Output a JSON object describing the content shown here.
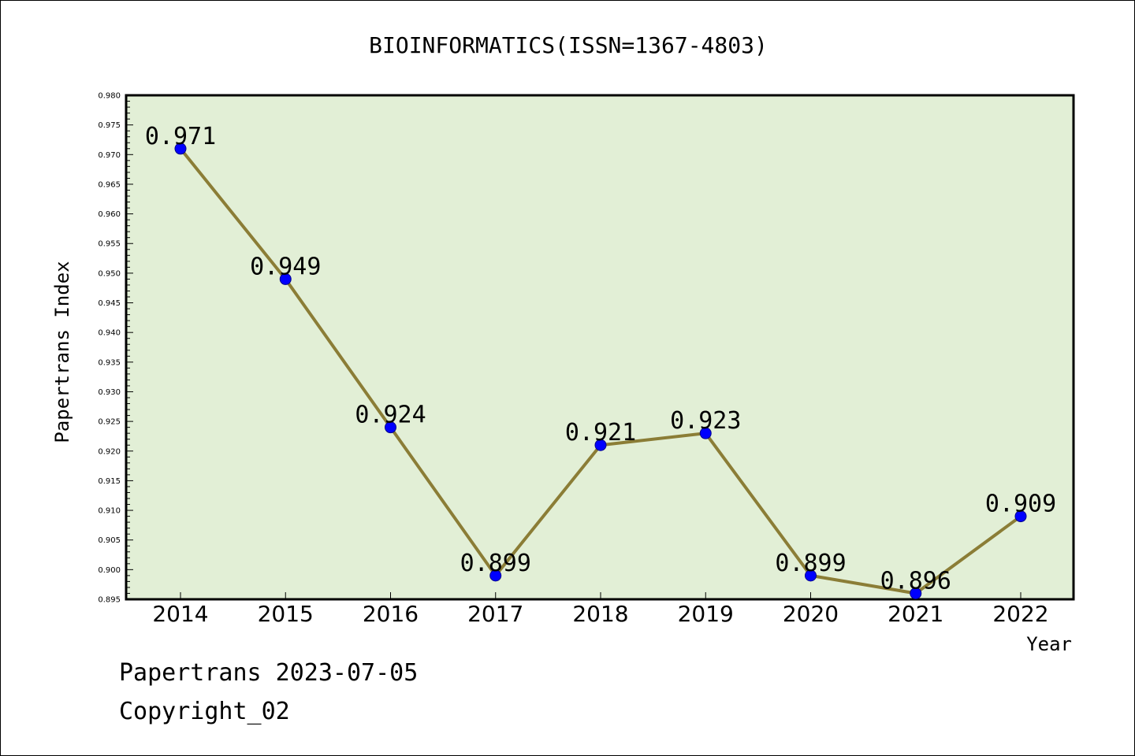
{
  "chart_data": {
    "type": "line",
    "title": "BIOINFORMATICS(ISSN=1367-4803)",
    "xlabel": "Year",
    "ylabel": "Papertrans Index",
    "categories": [
      "2014",
      "2015",
      "2016",
      "2017",
      "2018",
      "2019",
      "2020",
      "2021",
      "2022"
    ],
    "series": [
      {
        "values": [
          0.971,
          0.949,
          0.924,
          0.899,
          0.921,
          0.923,
          0.899,
          0.896,
          0.909
        ],
        "labels": [
          "0.971",
          "0.949",
          "0.924",
          "0.899",
          "0.921",
          "0.923",
          "0.899",
          "0.896",
          "0.909"
        ]
      }
    ],
    "ylim": [
      0.895,
      0.98
    ],
    "yticks": [
      "0.895",
      "0.900",
      "0.905",
      "0.910",
      "0.915",
      "0.920",
      "0.925",
      "0.930",
      "0.935",
      "0.940",
      "0.945",
      "0.950",
      "0.955",
      "0.960",
      "0.965",
      "0.970",
      "0.975",
      "0.980"
    ],
    "grid": false,
    "colors": {
      "plot_background": "#e2efd6",
      "line": "#8b7d36",
      "marker": "#0000ff",
      "marker_edge": "#00008b"
    }
  },
  "footer": {
    "date_line": "Papertrans 2023-07-05",
    "copyright_line": "Copyright_02"
  }
}
